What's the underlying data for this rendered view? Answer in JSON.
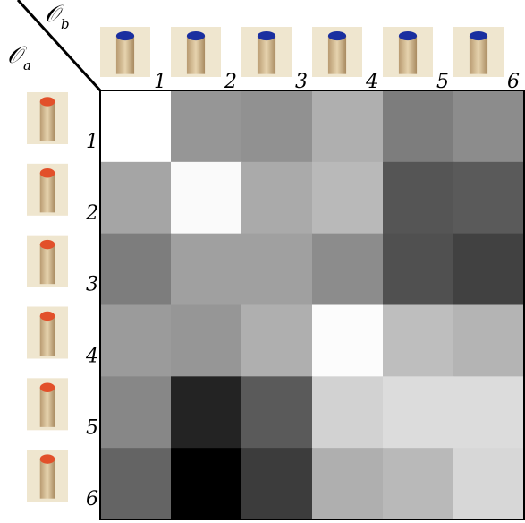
{
  "chart_data": {
    "type": "heatmap",
    "x_label": {
      "symbol": "𝒪",
      "subscript": "b"
    },
    "y_label": {
      "symbol": "𝒪",
      "subscript": "a"
    },
    "x_categories": [
      "1",
      "2",
      "3",
      "4",
      "5",
      "6"
    ],
    "y_categories": [
      "1",
      "2",
      "3",
      "4",
      "5",
      "6"
    ],
    "x_cap_color": "#1a2fa0",
    "y_cap_color": "#e2502a",
    "values": [
      [
        255,
        150,
        145,
        175,
        125,
        140
      ],
      [
        165,
        250,
        170,
        185,
        85,
        90
      ],
      [
        125,
        160,
        160,
        140,
        80,
        65
      ],
      [
        155,
        150,
        175,
        252,
        190,
        180
      ],
      [
        135,
        35,
        90,
        210,
        220,
        220
      ],
      [
        100,
        0,
        60,
        175,
        185,
        215
      ]
    ]
  }
}
